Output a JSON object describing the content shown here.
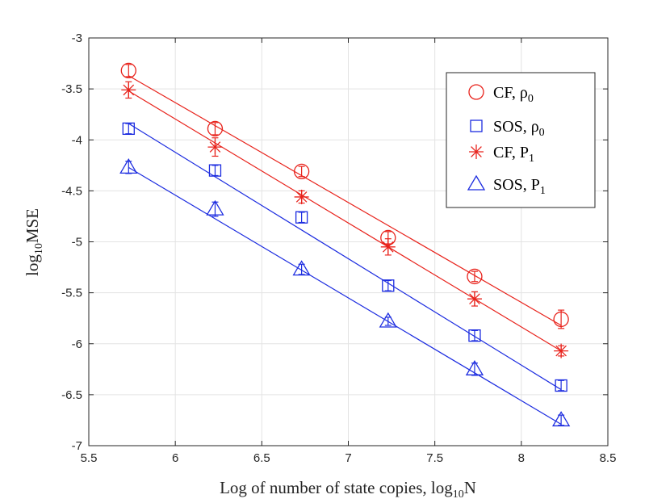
{
  "chart_data": {
    "type": "scatter",
    "title": "",
    "xlabel": {
      "text": "Log of number of state copies, log",
      "sub": "10",
      "tail": "N"
    },
    "ylabel": {
      "text": "log",
      "sub": "10",
      "tail": "MSE"
    },
    "xlim": [
      5.5,
      8.5
    ],
    "ylim": [
      -7,
      -3
    ],
    "xticks": [
      5.5,
      6,
      6.5,
      7,
      7.5,
      8,
      8.5
    ],
    "xtick_labels": [
      "5.5",
      "6",
      "6.5",
      "7",
      "7.5",
      "8",
      "8.5"
    ],
    "yticks": [
      -7,
      -6.5,
      -6,
      -5.5,
      -5,
      -4.5,
      -4,
      -3.5,
      -3
    ],
    "ytick_labels": [
      "-7",
      "-6.5",
      "-6",
      "-5.5",
      "-5",
      "-4.5",
      "-4",
      "-3.5",
      "-3"
    ],
    "grid": true,
    "legend_position": "top-right",
    "x": [
      5.73,
      6.23,
      6.73,
      7.23,
      7.73,
      8.23
    ],
    "series": [
      {
        "name": "CF, ρ0",
        "label": "CF, ρ",
        "label_sub": "0",
        "marker": "circle",
        "color": "#e8231c",
        "values": [
          -3.32,
          -3.89,
          -4.31,
          -4.96,
          -5.34,
          -5.76
        ],
        "errors": [
          0.06,
          0.06,
          0.05,
          0.06,
          0.05,
          0.09
        ],
        "fit": [
          -3.37,
          -5.82
        ]
      },
      {
        "name": "SOS, ρ0",
        "label": "SOS, ρ",
        "label_sub": "0",
        "marker": "square",
        "color": "#1c2ce0",
        "values": [
          -3.89,
          -4.3,
          -4.76,
          -5.43,
          -5.92,
          -6.41
        ],
        "errors": [
          0.05,
          0.05,
          0.05,
          0.05,
          0.05,
          0.05
        ],
        "fit": [
          -3.84,
          -6.45
        ]
      },
      {
        "name": "CF, P1",
        "label": "CF, P",
        "label_sub": "1",
        "marker": "asterisk",
        "color": "#e8231c",
        "values": [
          -3.51,
          -4.07,
          -4.56,
          -5.05,
          -5.56,
          -6.07
        ],
        "errors": [
          0.08,
          0.09,
          0.06,
          0.08,
          0.07,
          0.05
        ],
        "fit": [
          -3.52,
          -6.07
        ]
      },
      {
        "name": "SOS, P1",
        "label": "SOS, P",
        "label_sub": "1",
        "marker": "triangle",
        "color": "#1c2ce0",
        "values": [
          -4.27,
          -4.68,
          -5.27,
          -5.78,
          -6.25,
          -6.75
        ],
        "errors": [
          0.06,
          0.07,
          0.05,
          0.04,
          0.06,
          0.05
        ],
        "fit": [
          -4.27,
          -6.79
        ]
      }
    ]
  }
}
